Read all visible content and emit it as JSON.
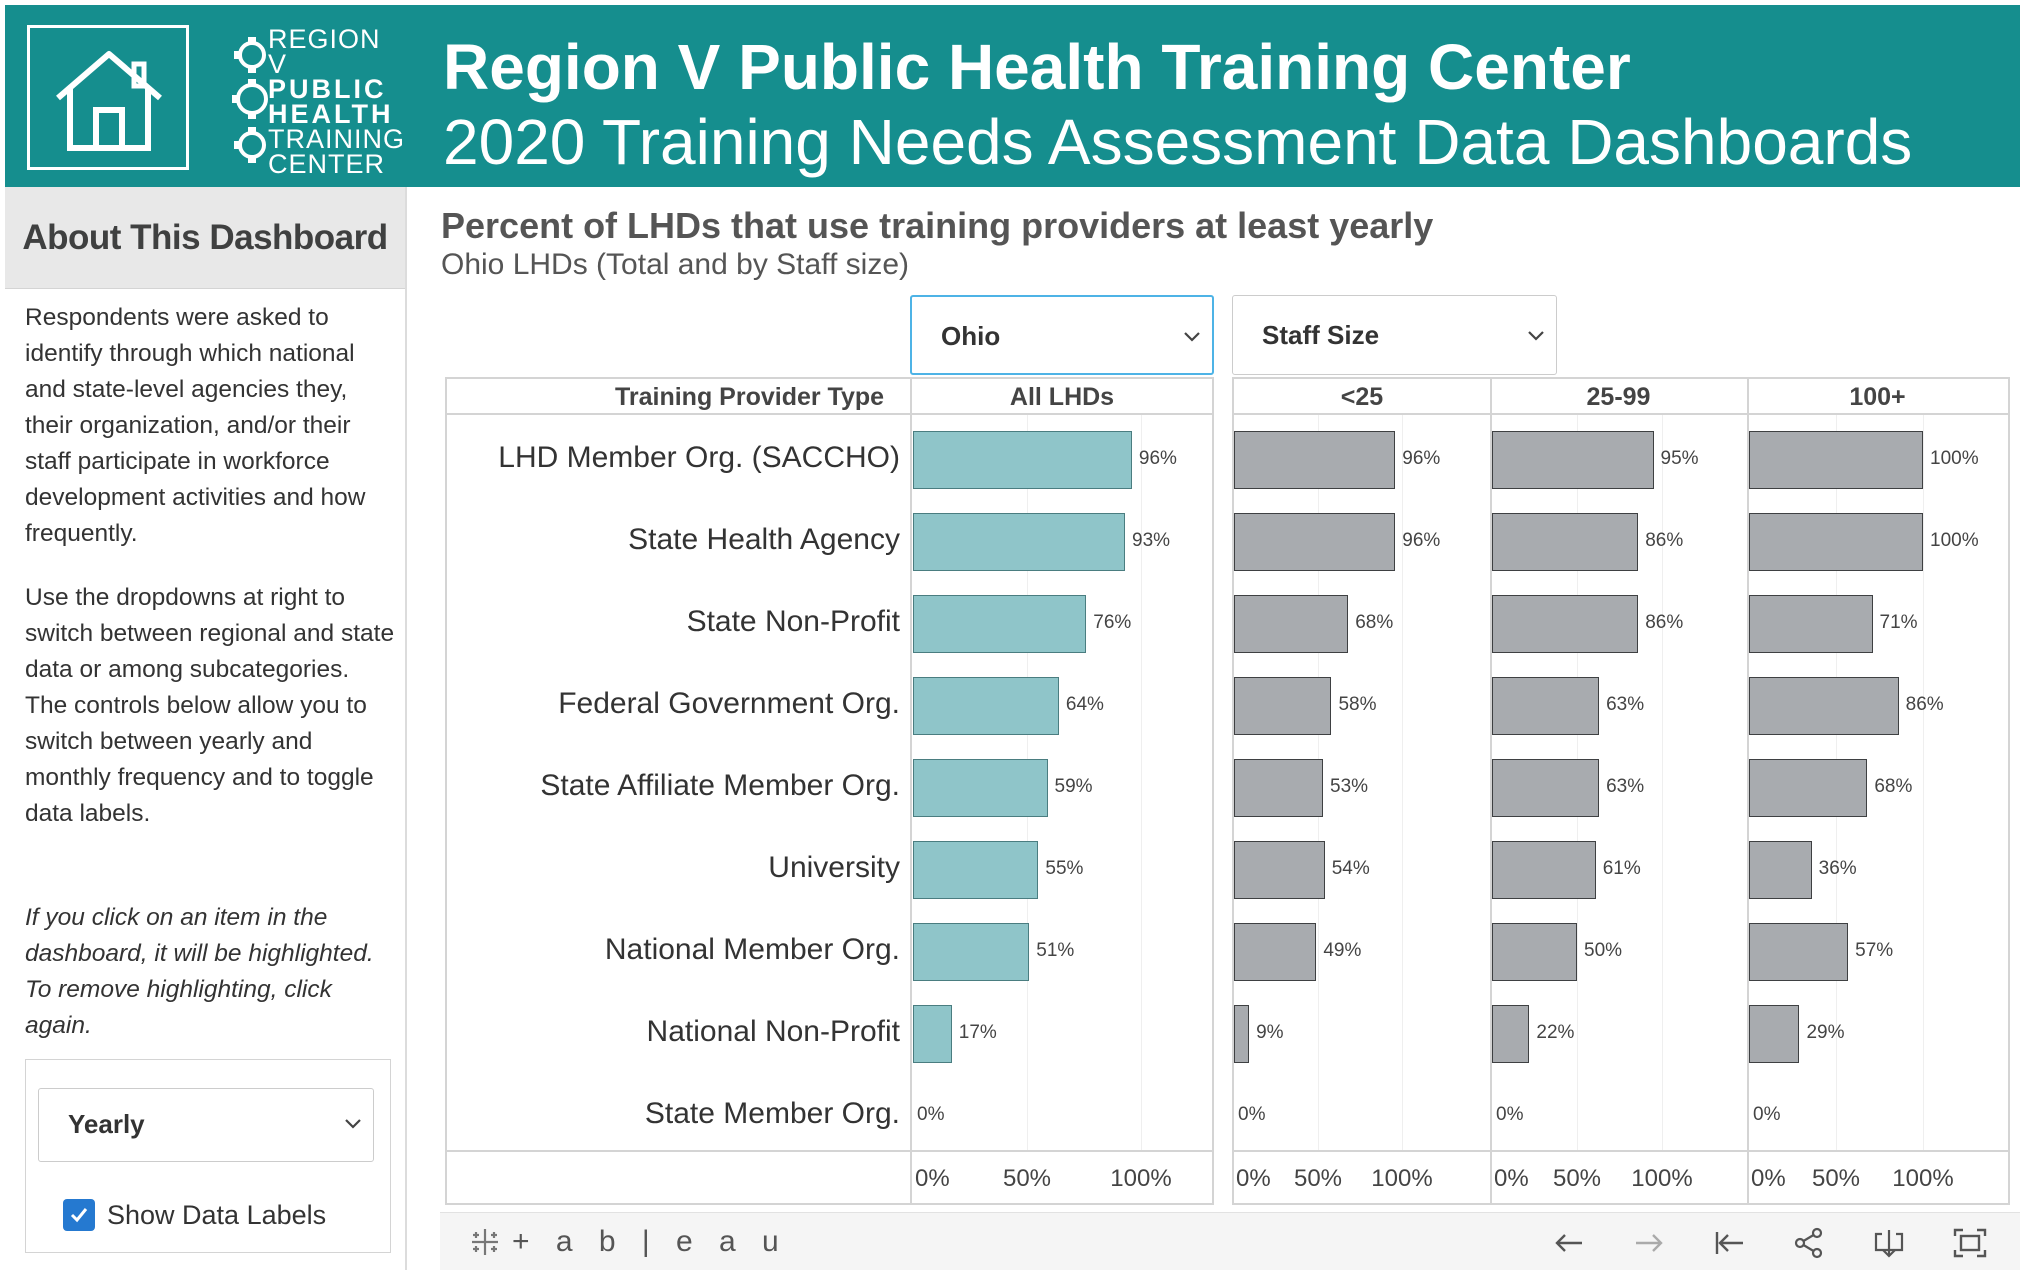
{
  "header": {
    "logo_lines": [
      "REGION V",
      "PUBLIC",
      "HEALTH",
      "TRAINING",
      "CENTER"
    ],
    "title": "Region V Public Health Training Center",
    "subtitle": "2020 Training Needs Assessment Data Dashboards",
    "home_icon": "home-icon",
    "color": "#158e8e"
  },
  "sidebar": {
    "heading": "About This Dashboard",
    "para1": "Respondents were asked to identify through which national and state-level agencies they, their organization, and/or their staff participate in workforce development activities and how frequently.",
    "para2": "Use the dropdowns at right to switch between regional and state data or among subcategories. The controls below allow you to switch between yearly and monthly frequency and to toggle data labels.",
    "para3": "If you click on an item in the dashboard, it will be highlighted. To remove highlighting, click again.",
    "frequency_select": "Yearly",
    "show_labels_text": "Show Data Labels",
    "show_labels_checked": true
  },
  "filters": {
    "state": "Ohio",
    "breakdown": "Staff Size"
  },
  "chart_data": {
    "type": "bar",
    "title": "Percent of LHDs that use training providers at least yearly",
    "subtitle": "Ohio LHDs (Total and by Staff size)",
    "row_header": "Training Provider Type",
    "categories": [
      "LHD Member Org. (SACCHO)",
      "State Health Agency",
      "State Non-Profit",
      "Federal Government Org.",
      "State Affiliate Member Org.",
      "University",
      "National Member Org.",
      "National Non-Profit",
      "State Member Org."
    ],
    "xlim": [
      0,
      100
    ],
    "x_ticks": [
      "0%",
      "50%",
      "100%"
    ],
    "series": [
      {
        "name": "All LHDs",
        "values": [
          96,
          93,
          76,
          64,
          59,
          55,
          51,
          17,
          0
        ],
        "color": "#8fc5c9"
      },
      {
        "name": "<25",
        "values": [
          96,
          96,
          68,
          58,
          53,
          54,
          49,
          9,
          0
        ],
        "color": "#a8abaf"
      },
      {
        "name": "25-99",
        "values": [
          95,
          86,
          86,
          63,
          63,
          61,
          50,
          22,
          0
        ],
        "color": "#a8abaf"
      },
      {
        "name": "100+",
        "values": [
          100,
          100,
          71,
          86,
          68,
          36,
          57,
          29,
          0
        ],
        "color": "#a8abaf"
      }
    ]
  },
  "toolbar": {
    "logo_text": "+ a b | e a u",
    "icons": [
      "undo-icon",
      "redo-icon",
      "revert-icon",
      "share-icon",
      "download-icon",
      "fullscreen-icon"
    ]
  }
}
